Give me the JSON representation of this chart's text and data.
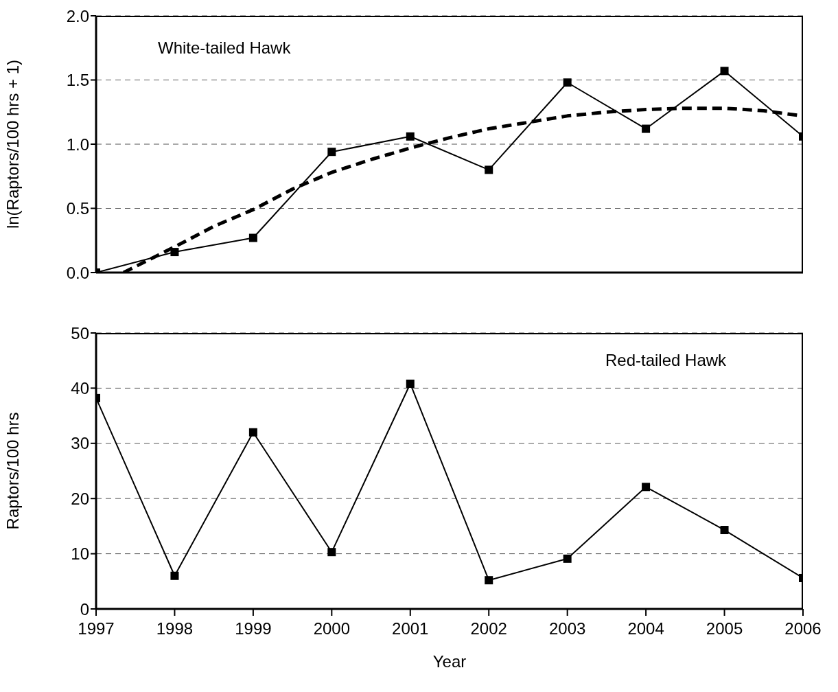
{
  "chart_data": [
    {
      "type": "line",
      "ylabel": "ln(Raptors/100 hrs + 1)",
      "annotations": [
        "White-tailed Hawk"
      ],
      "x": [
        1997,
        1998,
        1999,
        2000,
        2001,
        2002,
        2003,
        2004,
        2005,
        2006
      ],
      "xlim": [
        1997,
        2006
      ],
      "xticks": [
        1997,
        1998,
        1999,
        2000,
        2001,
        2002,
        2003,
        2004,
        2005,
        2006
      ],
      "ylim": [
        0,
        2
      ],
      "yticks": [
        {
          "value": 0,
          "label": "0.0"
        },
        {
          "value": 0.5,
          "label": "0.5"
        },
        {
          "value": 1,
          "label": "1.0"
        },
        {
          "value": 1.5,
          "label": "1.5"
        },
        {
          "value": 2,
          "label": "2.0"
        }
      ],
      "grid": "y",
      "marker": "square",
      "tick_labels": "y",
      "series": [
        {
          "color": "#000000",
          "values": [
            0,
            0.16,
            0.27,
            0.94,
            1.06,
            0.8,
            1.48,
            1.12,
            1.57,
            1.06
          ]
        },
        {
          "color": "#000000",
          "marker": "none",
          "line_style": "dashed",
          "x": [
            1997.35,
            1998,
            1998.5,
            1999,
            1999.5,
            2000,
            2000.5,
            2001,
            2001.5,
            2002,
            2002.5,
            2003,
            2003.5,
            2004,
            2004.5,
            2005,
            2005.5,
            2006
          ],
          "values": [
            0,
            0.2,
            0.36,
            0.49,
            0.65,
            0.78,
            0.88,
            0.97,
            1.05,
            1.12,
            1.17,
            1.22,
            1.25,
            1.27,
            1.28,
            1.28,
            1.26,
            1.22
          ]
        }
      ]
    },
    {
      "type": "line",
      "xlabel": "Year",
      "ylabel": "Raptors/100 hrs",
      "annotations": [
        "Red-tailed Hawk"
      ],
      "x": [
        1997,
        1998,
        1999,
        2000,
        2001,
        2002,
        2003,
        2004,
        2005,
        2006
      ],
      "xlim": [
        1997,
        2006
      ],
      "xticks": [
        1997,
        1998,
        1999,
        2000,
        2001,
        2002,
        2003,
        2004,
        2005,
        2006
      ],
      "ylim": [
        0,
        50
      ],
      "yticks": [
        0,
        10,
        20,
        30,
        40,
        50
      ],
      "grid": "y",
      "marker": "square",
      "series": [
        {
          "color": "#000000",
          "values": [
            38.2,
            6,
            32,
            10.3,
            40.8,
            5.2,
            9.1,
            22.1,
            14.3,
            5.6
          ]
        }
      ]
    }
  ]
}
